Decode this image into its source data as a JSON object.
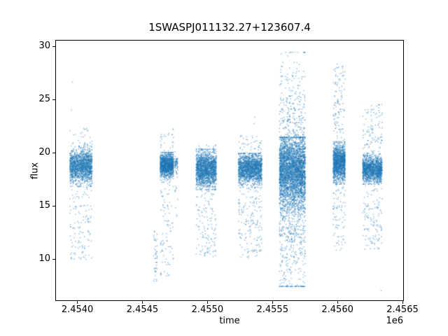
{
  "chart_data": {
    "type": "scatter",
    "title": "1SWASPJ011132.27+123607.4",
    "xlabel": "time",
    "ylabel": "flux",
    "x_offset_label": "1e6",
    "xlim": [
      2453838,
      2456508
    ],
    "ylim": [
      6.1,
      30.5
    ],
    "xticks": [
      2454000,
      2454500,
      2455000,
      2455500,
      2456000,
      2456500
    ],
    "xtick_labels": [
      "2.4540",
      "2.4545",
      "2.4550",
      "2.4555",
      "2.4560",
      "2.4565"
    ],
    "yticks": [
      10,
      15,
      20,
      25,
      30
    ],
    "ytick_labels": [
      "10",
      "15",
      "20",
      "25",
      "30"
    ],
    "grid": false,
    "legend": "none",
    "marker_color": "#1f77b4",
    "marker_alpha": 0.55,
    "marker_size_px": 1.4,
    "clusters": [
      {
        "t0": 2453944,
        "t1": 2454116,
        "dense_n": 1500,
        "dense_mean": 18.7,
        "dense_sd": 0.75,
        "dense_clip": [
          16.8,
          20.9
        ],
        "sparse_n": 200,
        "sparse_lo": 9.9,
        "sparse_hi": 22.4
      },
      {
        "t0": 2454588,
        "t1": 2454616,
        "dense_n": 0,
        "dense_mean": 0,
        "dense_sd": 1,
        "dense_clip": [
          0,
          1
        ],
        "sparse_n": 45,
        "sparse_lo": 7.9,
        "sparse_hi": 12.6
      },
      {
        "t0": 2454638,
        "t1": 2454742,
        "dense_n": 1300,
        "dense_mean": 18.8,
        "dense_sd": 0.55,
        "dense_clip": [
          17.2,
          20.0
        ],
        "sparse_n": 140,
        "sparse_lo": 8.3,
        "sparse_hi": 22.3
      },
      {
        "t0": 2454750,
        "t1": 2454775,
        "dense_n": 60,
        "dense_mean": 18.9,
        "dense_sd": 0.4,
        "dense_clip": [
          18.0,
          19.6
        ],
        "sparse_n": 18,
        "sparse_lo": 12.8,
        "sparse_hi": 20.2
      },
      {
        "t0": 2454915,
        "t1": 2455072,
        "dense_n": 1700,
        "dense_mean": 18.4,
        "dense_sd": 0.8,
        "dense_clip": [
          16.5,
          20.3
        ],
        "sparse_n": 240,
        "sparse_lo": 10.2,
        "sparse_hi": 20.7
      },
      {
        "t0": 2455240,
        "t1": 2455422,
        "dense_n": 1700,
        "dense_mean": 18.5,
        "dense_sd": 0.7,
        "dense_clip": [
          16.7,
          19.9
        ],
        "sparse_n": 280,
        "sparse_lo": 10.0,
        "sparse_hi": 21.6
      },
      {
        "t0": 2455556,
        "t1": 2455756,
        "dense_n": 3000,
        "dense_mean": 18.3,
        "dense_sd": 1.6,
        "dense_clip": [
          12.2,
          21.4
        ],
        "sparse_n": 1400,
        "sparse_lo": 7.4,
        "sparse_hi": 29.4,
        "sparse_mean": 17.0,
        "sparse_sd": 5.2
      },
      {
        "t0": 2455970,
        "t1": 2456062,
        "dense_n": 1400,
        "dense_mean": 19.0,
        "dense_sd": 0.8,
        "dense_clip": [
          17.0,
          21.0
        ],
        "sparse_n": 260,
        "sparse_lo": 10.8,
        "sparse_hi": 28.3
      },
      {
        "t0": 2456196,
        "t1": 2456346,
        "dense_n": 1400,
        "dense_mean": 18.4,
        "dense_sd": 0.6,
        "dense_clip": [
          17.0,
          19.9
        ],
        "sparse_n": 300,
        "sparse_lo": 10.9,
        "sparse_hi": 24.5
      }
    ],
    "outliers": [
      [
        2453965,
        26.6
      ],
      [
        2453958,
        24.0
      ],
      [
        2455368,
        23.3
      ],
      [
        2455360,
        22.7
      ],
      [
        2456338,
        7.0
      ]
    ]
  }
}
